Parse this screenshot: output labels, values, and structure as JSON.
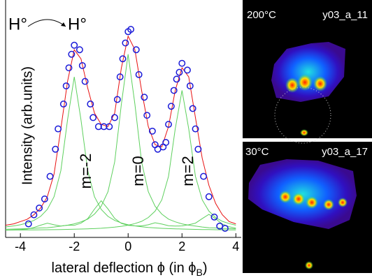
{
  "chart_data": {
    "type": "scatter",
    "ylabel": "Intensity (arb.units)",
    "xlabel": [
      "lateral deflection ϕ (in ϕ",
      "B",
      ")"
    ],
    "xlim": [
      -4.55,
      4.2
    ],
    "ylim": [
      -3,
      102
    ],
    "xticks": [
      -4,
      -2,
      0,
      2,
      4
    ],
    "color": "#1a1ad8",
    "x": [
      -3.7,
      -3.5,
      -3.3,
      -3.1,
      -2.9,
      -2.7,
      -2.6,
      -2.4,
      -2.3,
      -2.2,
      -2.1,
      -2.0,
      -1.8,
      -1.7,
      -1.6,
      -1.4,
      -1.3,
      -1.1,
      -0.9,
      -0.7,
      -0.5,
      -0.4,
      -0.3,
      -0.2,
      -0.1,
      0.0,
      0.1,
      0.3,
      0.4,
      0.6,
      0.7,
      0.9,
      1.0,
      1.1,
      1.3,
      1.4,
      1.5,
      1.6,
      1.7,
      1.8,
      1.9,
      2.0,
      2.2,
      2.3,
      2.4,
      2.5,
      2.6,
      2.8,
      3.0,
      3.2,
      3.4,
      3.6
    ],
    "values": [
      3,
      7,
      10,
      14,
      24,
      36,
      45,
      56,
      64,
      72,
      78,
      82,
      80,
      73,
      66,
      56,
      50,
      46,
      46,
      46,
      50,
      58,
      68,
      76,
      83,
      88,
      89,
      80,
      69,
      59,
      51,
      44,
      38,
      36,
      37,
      39,
      47,
      55,
      62,
      67,
      70,
      74,
      71,
      64,
      54,
      45,
      36,
      24,
      15,
      6,
      2,
      1
    ],
    "fit_x": [
      -4.75,
      -4.5,
      -4.25,
      -4,
      -3.75,
      -3.5,
      -3.25,
      -3,
      -2.75,
      -2.5,
      -2.25,
      -2,
      -1.75,
      -1.5,
      -1.25,
      -1,
      -0.75,
      -0.5,
      -0.25,
      0,
      0.25,
      0.5,
      0.75,
      1,
      1.25,
      1.5,
      1.75,
      2,
      2.25,
      2.5,
      2.75,
      3,
      3.25,
      3.5,
      3.75,
      4
    ],
    "fit": {
      "color": "#e81010",
      "values": [
        2,
        2.5,
        3,
        4,
        5,
        7,
        10,
        15,
        25,
        45,
        66,
        80,
        76,
        63,
        52,
        47,
        46,
        52,
        72,
        86,
        80,
        62,
        46,
        38,
        37,
        46,
        62,
        72,
        68,
        50,
        32,
        20,
        12,
        7,
        4,
        3
      ]
    },
    "components": [
      {
        "color": "#5ed05e",
        "values": [
          1.4,
          1.7,
          2.1,
          2.6,
          3.4,
          4.5,
          6.3,
          9.4,
          15,
          26.5,
          49,
          68,
          49,
          26.5,
          15,
          9.4,
          6.3,
          4.5,
          3.4,
          2.6,
          2.1,
          1.7,
          1.4,
          1.2,
          1.0,
          0.9,
          0.8,
          0.7,
          0.6,
          0.55,
          0.5,
          0.45,
          0.4,
          0.37,
          0.34,
          0.3
        ]
      },
      {
        "color": "#5ed05e",
        "values": [
          0.55,
          0.6,
          0.7,
          0.8,
          0.9,
          1.0,
          1.2,
          1.3,
          1.6,
          2.0,
          2.4,
          3.0,
          3.9,
          5.1,
          7.3,
          10.8,
          17.2,
          30.4,
          56,
          78,
          56,
          30.4,
          17.2,
          10.8,
          7.3,
          5.1,
          3.9,
          3.0,
          2.4,
          2.0,
          1.6,
          1.3,
          1.2,
          1.0,
          0.9,
          0.8
        ]
      },
      {
        "color": "#5ed05e",
        "values": [
          0.2,
          0.25,
          0.26,
          0.27,
          0.3,
          0.33,
          0.36,
          0.4,
          0.44,
          0.5,
          0.55,
          0.6,
          0.7,
          0.8,
          0.9,
          1.05,
          1.3,
          1.55,
          1.9,
          2.4,
          3.1,
          4.1,
          5.8,
          8.6,
          13.6,
          24,
          45,
          62,
          45,
          24,
          13.6,
          8.6,
          5.8,
          4.1,
          3.1,
          2.4
        ]
      },
      {
        "color": "#5ed05e",
        "values": [
          0.1,
          0.2,
          0.3,
          0.45,
          0.7,
          1.4,
          2.4,
          3.3,
          2.6,
          2.0,
          2.4,
          2.3,
          3.3,
          5.3,
          9.5,
          13.2,
          9.6,
          5.4,
          3.2,
          2.3,
          2.1,
          2.1,
          2.6,
          3.5,
          2.9,
          2.2,
          2.0,
          2.1,
          2.6,
          3.3,
          5.3,
          7.2,
          5.2,
          2.9,
          1.7,
          1.1
        ]
      }
    ],
    "annotations": [
      "H°",
      "H°",
      "m=-2",
      "m=0",
      "m=2"
    ]
  },
  "images": [
    {
      "temperature": "200°C",
      "label": "y03_a_11"
    },
    {
      "temperature": "30°C",
      "label": "y03_a_17"
    }
  ]
}
